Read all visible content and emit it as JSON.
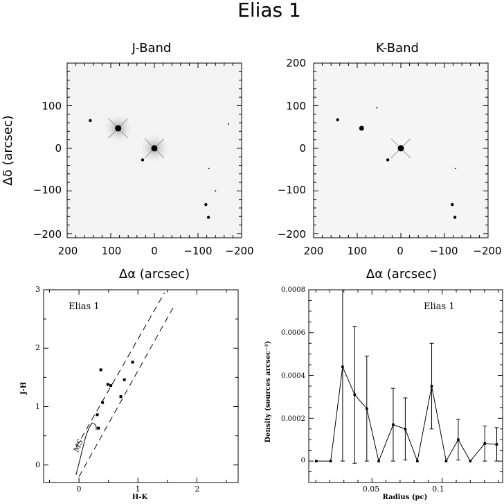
{
  "title": "Elias 1",
  "colors": {
    "ink": "#000000",
    "image_bg": "#f3f3f3",
    "paper": "#ffffff"
  },
  "panels": {
    "j_band": {
      "title": "J-Band",
      "xlabel": "Δα (arcsec)",
      "ylabel": "Δδ (arcsec)",
      "xticklabels": [
        "200",
        "100",
        "0",
        "−100",
        "−200"
      ],
      "yticklabels": [
        "100",
        "0",
        "−100",
        "−200"
      ]
    },
    "k_band": {
      "title": "K-Band",
      "xlabel": "Δα (arcsec)",
      "yticklabels": [
        "200",
        "100",
        "0",
        "−100",
        "−200"
      ],
      "xticklabels": [
        "200",
        "100",
        "0",
        "−100",
        "−200"
      ]
    },
    "ccd": {
      "xlabel": "H-K",
      "ylabel": "J-H",
      "annotation": "Elias 1",
      "ms_label": "MS",
      "xticklabels": [
        "0",
        "1",
        "2"
      ],
      "yticklabels": [
        "0",
        "1",
        "2",
        "3"
      ]
    },
    "density": {
      "xlabel": "Radius (pc)",
      "ylabel": "Density (sources arcsec⁻²)",
      "annotation": "Elias 1",
      "xticklabels": [
        "0.05",
        "0.1"
      ],
      "yticklabels": [
        "0",
        "0.0002",
        "0.0004",
        "0.0006",
        "0.0008"
      ]
    }
  },
  "chart_data": [
    {
      "type": "scatter",
      "name": "J-Band image",
      "xlim": [
        200,
        -200
      ],
      "ylim": [
        -210,
        200
      ],
      "stars": [
        {
          "x": 0,
          "y": 0,
          "size": 4
        },
        {
          "x": 83,
          "y": 47,
          "size": 4
        },
        {
          "x": 147,
          "y": 65,
          "size": 2
        },
        {
          "x": 27,
          "y": -27,
          "size": 2
        },
        {
          "x": -118,
          "y": -132,
          "size": 2
        },
        {
          "x": -124,
          "y": -162,
          "size": 2
        },
        {
          "x": -170,
          "y": 57,
          "size": 1
        },
        {
          "x": -125,
          "y": -47,
          "size": 1
        },
        {
          "x": -140,
          "y": -100,
          "size": 1
        }
      ]
    },
    {
      "type": "scatter",
      "name": "K-Band image",
      "xlim": [
        200,
        -200
      ],
      "ylim": [
        -210,
        200
      ],
      "stars": [
        {
          "x": 0,
          "y": 0,
          "size": 4
        },
        {
          "x": 90,
          "y": 47,
          "size": 3
        },
        {
          "x": 145,
          "y": 67,
          "size": 2
        },
        {
          "x": 30,
          "y": -27,
          "size": 2
        },
        {
          "x": -118,
          "y": -132,
          "size": 2
        },
        {
          "x": -124,
          "y": -162,
          "size": 2
        },
        {
          "x": 55,
          "y": 95,
          "size": 1
        },
        {
          "x": -125,
          "y": -47,
          "size": 1
        }
      ]
    },
    {
      "type": "scatter",
      "name": "colour-colour diagram",
      "xlim": [
        -0.6,
        2.7
      ],
      "ylim": [
        -0.3,
        3
      ],
      "xlabel": "H-K",
      "ylabel": "J-H",
      "points": [
        {
          "x": 0.37,
          "y": 1.63
        },
        {
          "x": 0.91,
          "y": 1.76
        },
        {
          "x": 0.49,
          "y": 1.38
        },
        {
          "x": 0.54,
          "y": 1.36
        },
        {
          "x": 0.77,
          "y": 1.46
        },
        {
          "x": 0.4,
          "y": 1.07
        },
        {
          "x": 0.71,
          "y": 1.17
        },
        {
          "x": 0.31,
          "y": 0.86
        },
        {
          "x": 0.33,
          "y": 0.63
        }
      ],
      "main_sequence": [
        {
          "x": -0.05,
          "y": -0.17
        },
        {
          "x": 0.08,
          "y": 0.35
        },
        {
          "x": 0.13,
          "y": 0.58
        },
        {
          "x": 0.22,
          "y": 0.72
        },
        {
          "x": 0.31,
          "y": 0.7
        },
        {
          "x": 0.29,
          "y": 0.6
        }
      ],
      "reddening_lines": [
        {
          "x": [
            -0.05,
            1.45
          ],
          "y": [
            0.3,
            2.95
          ]
        },
        {
          "x": 0.0,
          "y": -0.2,
          "x2": 1.6,
          "y2": 2.7
        }
      ]
    },
    {
      "type": "line",
      "name": "radial density profile",
      "xlabel": "Radius (pc)",
      "ylabel": "Density (sources arcsec⁻²)",
      "xlim": [
        0.005,
        0.143
      ],
      "ylim": [
        -0.0001,
        0.0008
      ],
      "x": [
        0.0103,
        0.0206,
        0.0291,
        0.0377,
        0.0463,
        0.0548,
        0.0651,
        0.0737,
        0.0823,
        0.0925,
        0.1028,
        0.1114,
        0.12,
        0.1303,
        0.1388
      ],
      "values": [
        0.0,
        0.0,
        0.00044,
        0.00031,
        0.000245,
        0.0,
        0.00017,
        0.00015,
        0.0,
        0.00035,
        0.0,
        0.0001,
        0.0,
        8.2e-05,
        7.8e-05
      ],
      "errors": [
        0.0,
        0.0,
        0.00044,
        0.00032,
        0.000245,
        0.0,
        0.00017,
        0.000145,
        0.0,
        0.0002,
        0.0,
        9.5e-05,
        0.0,
        8.2e-05,
        7.8e-05
      ]
    }
  ]
}
